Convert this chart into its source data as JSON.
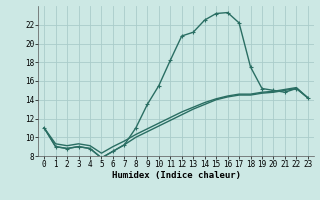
{
  "xlabel": "Humidex (Indice chaleur)",
  "x_values": [
    0,
    1,
    2,
    3,
    4,
    5,
    6,
    7,
    8,
    9,
    10,
    11,
    12,
    13,
    14,
    15,
    16,
    17,
    18,
    19,
    20,
    21,
    22,
    23
  ],
  "main_line": [
    11,
    9,
    8.8,
    9,
    8.8,
    7.8,
    8.5,
    9.2,
    11,
    13.5,
    15.5,
    18.2,
    20.8,
    21.2,
    22.5,
    23.2,
    23.3,
    22.2,
    17.5,
    15.2,
    15.0,
    14.8,
    15.2,
    14.2
  ],
  "line2": [
    11,
    9.0,
    8.8,
    9.0,
    8.8,
    7.8,
    8.5,
    9.2,
    10.0,
    10.6,
    11.2,
    11.8,
    12.4,
    13.0,
    13.5,
    14.0,
    14.3,
    14.5,
    14.5,
    14.7,
    14.8,
    15.0,
    15.2,
    14.2
  ],
  "line3": [
    11,
    9.3,
    9.1,
    9.3,
    9.1,
    8.3,
    9.0,
    9.6,
    10.3,
    10.9,
    11.5,
    12.1,
    12.7,
    13.2,
    13.7,
    14.1,
    14.4,
    14.6,
    14.6,
    14.8,
    14.9,
    15.1,
    15.3,
    14.2
  ],
  "line_color": "#2a6e63",
  "bg_color": "#cce8e4",
  "grid_color": "#aaccca",
  "ylim": [
    8,
    24
  ],
  "xlim": [
    -0.5,
    23.5
  ],
  "yticks": [
    8,
    10,
    12,
    14,
    16,
    18,
    20,
    22
  ],
  "xticks": [
    0,
    1,
    2,
    3,
    4,
    5,
    6,
    7,
    8,
    9,
    10,
    11,
    12,
    13,
    14,
    15,
    16,
    17,
    18,
    19,
    20,
    21,
    22,
    23
  ],
  "xlabel_fontsize": 6.5,
  "tick_fontsize": 5.5,
  "line_width": 1.0,
  "marker": "+"
}
